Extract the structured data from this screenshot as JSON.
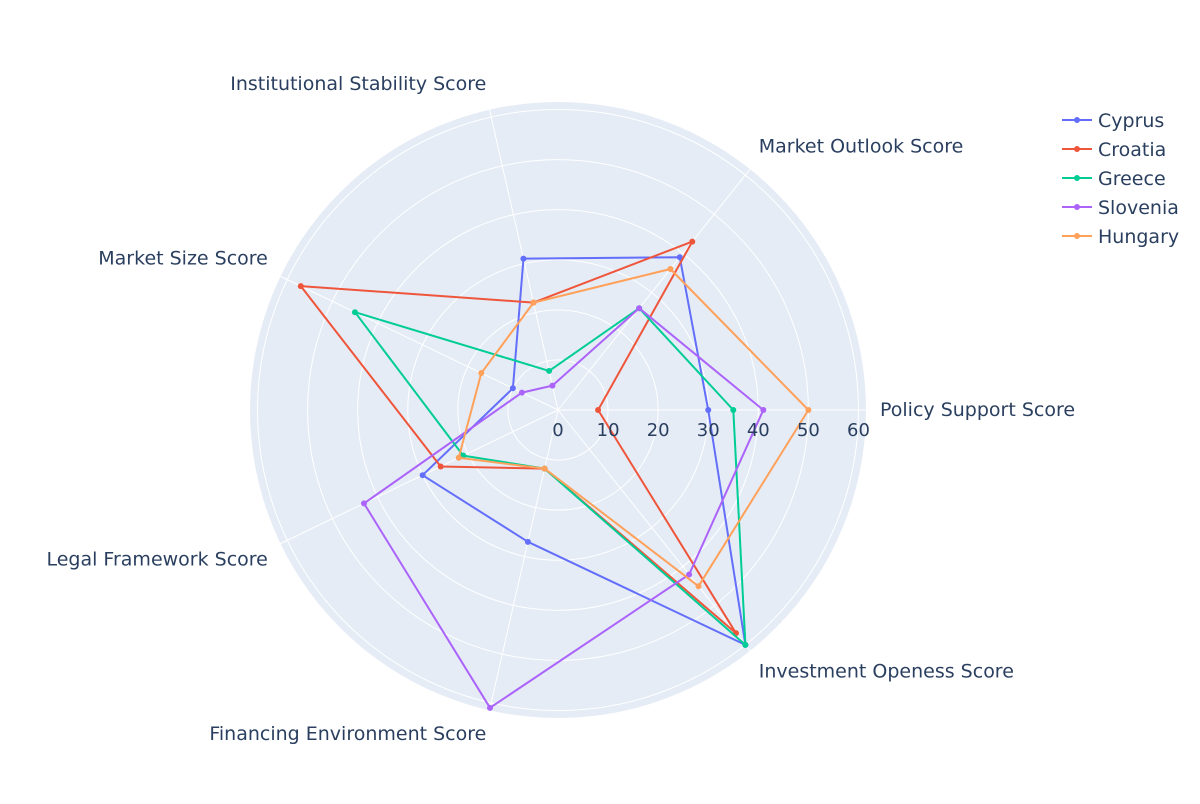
{
  "chart_data": {
    "type": "radar",
    "title": "",
    "axes": [
      "Policy Support Score",
      "Market Outlook Score",
      "Institutional Stability Score",
      "Market Size Score",
      "Legal Framework Score",
      "Financing Environment Score",
      "Investment Openess Score"
    ],
    "r_ticks": [
      0,
      10,
      20,
      30,
      40,
      50,
      60
    ],
    "r_range": [
      0,
      61.5
    ],
    "grid": true,
    "legend_position": "top-right",
    "series": [
      {
        "name": "Cyprus",
        "color": "#636efa",
        "values": [
          30,
          39,
          31,
          10,
          30,
          27,
          60
        ]
      },
      {
        "name": "Croatia",
        "color": "#EF553B",
        "values": [
          8,
          43,
          22,
          57,
          26,
          12,
          57
        ]
      },
      {
        "name": "Greece",
        "color": "#00cc96",
        "values": [
          35,
          26,
          8,
          45,
          21,
          12,
          60
        ]
      },
      {
        "name": "Slovenia",
        "color": "#ab63fa",
        "values": [
          41,
          26,
          5,
          8,
          43,
          61,
          42
        ]
      },
      {
        "name": "Hungary",
        "color": "#FFA15A",
        "values": [
          50,
          36,
          22,
          17,
          22,
          12,
          45
        ]
      }
    ]
  }
}
